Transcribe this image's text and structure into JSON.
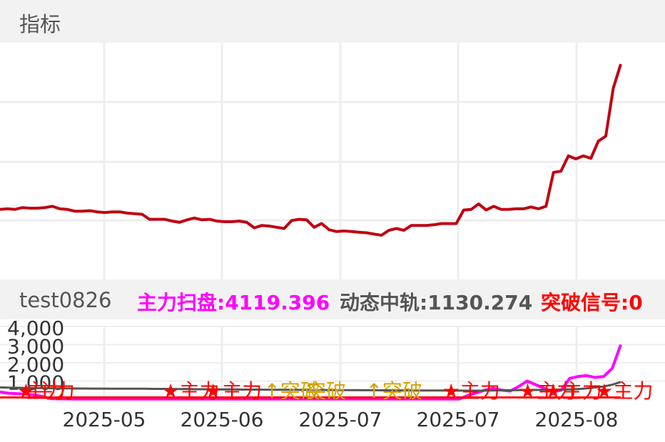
{
  "header": {
    "title": "指标"
  },
  "indicator_bar": {
    "name": "test0826",
    "items": [
      {
        "label": "主力扫盘:",
        "value": "4119.396",
        "color": "#ff00ff"
      },
      {
        "label": "动态中轨:",
        "value": "1130.274",
        "color": "#555555"
      },
      {
        "label": "突破信号:",
        "value": "0",
        "color": "#ff0000"
      }
    ]
  },
  "chart_data": [
    {
      "type": "line",
      "series": [
        {
          "values": [
            33.2,
            33.3,
            33.2,
            33.5,
            33.4,
            33.4,
            33.5,
            33.7,
            33.3,
            33.2,
            32.9,
            32.9,
            33.0,
            32.8,
            32.7,
            32.8,
            32.8,
            32.6,
            32.5,
            32.4,
            31.6,
            31.6,
            31.6,
            31.3,
            31.1,
            31.5,
            31.8,
            31.5,
            31.6,
            31.3,
            31.2,
            31.2,
            31.3,
            31.1,
            30.2,
            30.6,
            30.5,
            30.3,
            30.1,
            31.4,
            31.6,
            31.5,
            30.3,
            30.9,
            29.9,
            29.6,
            29.7,
            29.6,
            29.5,
            29.4,
            29.2,
            29.0,
            29.8,
            30.1,
            29.8,
            30.6,
            30.6,
            30.6,
            30.7,
            30.9,
            30.9,
            30.9,
            33.1,
            33.2,
            34.1,
            33.1,
            33.7,
            33.2,
            33.2,
            33.3,
            33.3,
            33.6,
            33.3,
            33.7,
            39.2,
            39.4,
            41.9,
            41.4,
            41.9,
            41.5,
            44.3,
            45.1,
            52.9,
            56.8
          ]
        }
      ],
      "color": "#bf0010",
      "grid": true
    },
    {
      "type": "line",
      "x_tick_labels": [
        "2025-05",
        "2025-06",
        "2025-07",
        "2025-07",
        "2025-08"
      ],
      "y_tick_labels": [
        "4,000",
        "3,000",
        "2,000",
        "1,000"
      ],
      "ylim": [
        0,
        4000
      ],
      "series": [
        {
          "values": [
            400,
            330,
            310,
            280,
            240,
            150,
            30,
            20,
            15,
            12,
            10,
            10,
            10,
            10,
            10,
            10,
            10,
            10,
            10,
            10,
            10,
            10,
            10,
            10,
            10,
            10,
            10,
            10,
            10,
            10,
            10,
            10,
            10,
            10,
            10,
            10,
            10,
            10,
            10,
            10,
            10,
            10,
            10,
            10,
            10,
            10,
            10,
            10,
            10,
            10,
            10,
            10,
            10,
            10,
            10,
            200,
            350,
            500,
            600,
            500,
            450,
            700,
            1000,
            800,
            600,
            400,
            500,
            1150,
            1250,
            1300,
            1200,
            1250,
            1700,
            3000
          ],
          "color": "#ff00ff"
        },
        {
          "values": [
            650,
            640,
            630,
            620,
            615,
            610,
            605,
            600,
            595,
            590,
            590,
            585,
            585,
            580,
            580,
            578,
            575,
            575,
            570,
            568,
            565,
            560,
            555,
            550,
            548,
            545,
            540,
            538,
            535,
            530,
            528,
            525,
            522,
            520,
            518,
            515,
            512,
            510,
            508,
            505,
            502,
            500,
            498,
            496,
            494,
            492,
            490,
            488,
            486,
            484,
            482,
            480,
            478,
            476,
            474,
            472,
            470,
            475,
            480,
            490,
            495,
            500,
            505,
            510,
            515,
            520,
            530,
            540,
            560,
            600,
            650,
            700,
            800,
            950
          ],
          "color": "#555555"
        },
        {
          "values": [
            100,
            100,
            100,
            100,
            100,
            100,
            100,
            100,
            100,
            100,
            100,
            100,
            100,
            100,
            100,
            100,
            100,
            100,
            100,
            100,
            100,
            100,
            100,
            100,
            100,
            100,
            100,
            100,
            100,
            100,
            100,
            100,
            100,
            100,
            100,
            100,
            100,
            100,
            100,
            100,
            100,
            100,
            100,
            100,
            100,
            100,
            100,
            100,
            100,
            100,
            100,
            100,
            100,
            100,
            100,
            100,
            100,
            100,
            100,
            100,
            100,
            100,
            100,
            100,
            100,
            100,
            100,
            100,
            100,
            100,
            100,
            100,
            100,
            100
          ],
          "color": "#ff0000"
        }
      ],
      "annotations": [
        {
          "text": "★主力",
          "color": "#ff0000",
          "x_index": 2
        },
        {
          "text": "主力",
          "color": "#ff0000",
          "x_index": 3
        },
        {
          "text": "★主力",
          "color": "#ff0000",
          "x_index": 19
        },
        {
          "text": "★主力",
          "color": "#ff0000",
          "x_index": 24
        },
        {
          "text": "↑突破",
          "color": "#d4a300",
          "x_index": 31
        },
        {
          "text": "突破",
          "color": "#d4a300",
          "x_index": 36
        },
        {
          "text": "↑突破",
          "color": "#d4a300",
          "x_index": 43
        },
        {
          "text": "★主力",
          "color": "#ff0000",
          "x_index": 52
        },
        {
          "text": "★主力",
          "color": "#ff0000",
          "x_index": 61
        },
        {
          "text": "★主力",
          "color": "#ff0000",
          "x_index": 64
        },
        {
          "text": "★主力",
          "color": "#ff0000",
          "x_index": 70
        }
      ]
    }
  ]
}
